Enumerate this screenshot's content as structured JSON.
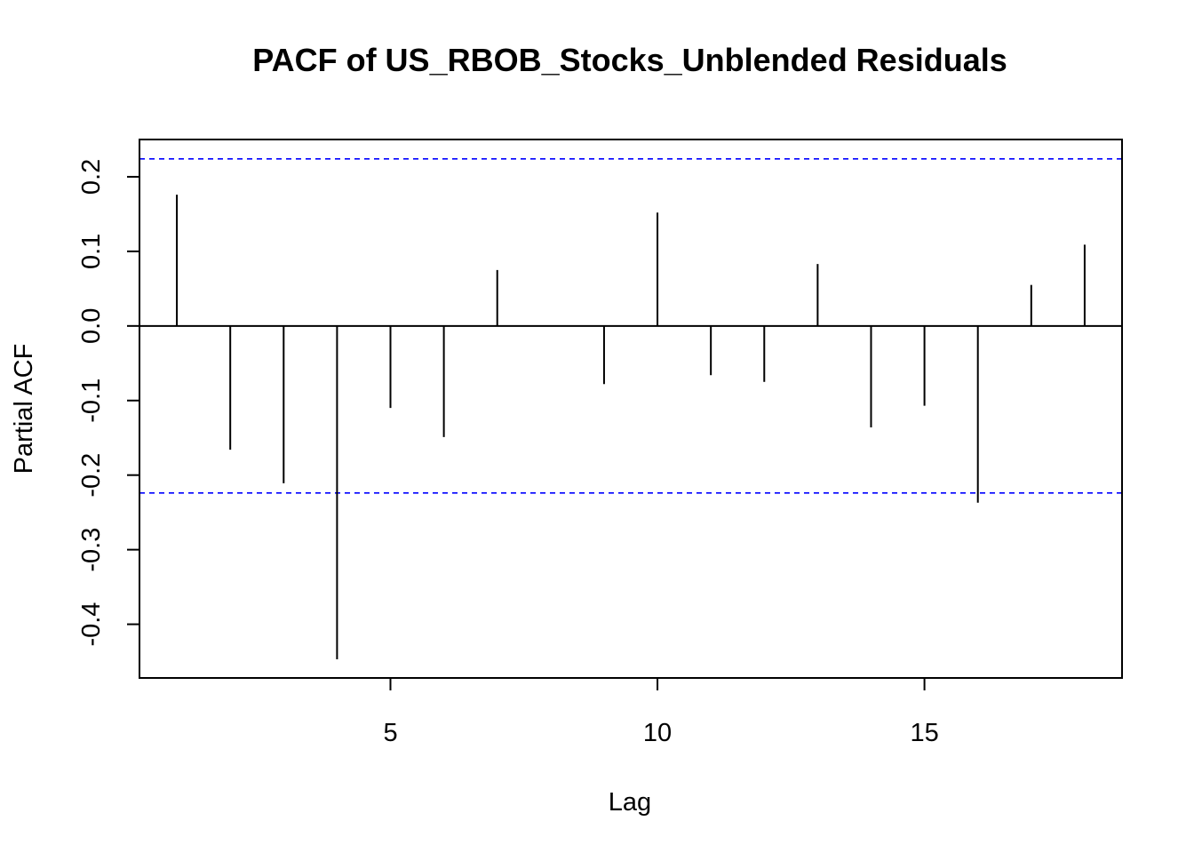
{
  "chart_data": {
    "type": "bar",
    "title": "PACF of US_RBOB_Stocks_Unblended Residuals",
    "xlabel": "Lag",
    "ylabel": "Partial ACF",
    "x": [
      1,
      2,
      3,
      4,
      5,
      6,
      7,
      8,
      9,
      10,
      11,
      12,
      13,
      14,
      15,
      16,
      17,
      18
    ],
    "values": [
      0.176,
      -0.166,
      -0.211,
      -0.447,
      -0.11,
      -0.149,
      0.075,
      0.0,
      -0.078,
      0.152,
      -0.066,
      -0.075,
      0.083,
      -0.136,
      -0.107,
      -0.237,
      0.055,
      0.109
    ],
    "confidence_bound": 0.224,
    "xlim": [
      0.3,
      18.7
    ],
    "ylim": [
      -0.472,
      0.25
    ],
    "x_ticks": [
      5,
      10,
      15
    ],
    "x_tick_labels": [
      "5",
      "10",
      "15"
    ],
    "y_ticks": [
      -0.4,
      -0.3,
      -0.2,
      -0.1,
      0.0,
      0.1,
      0.2
    ],
    "y_tick_labels": [
      "-0.4",
      "-0.3",
      "-0.2",
      "-0.1",
      "0.0",
      "0.1",
      "0.2"
    ],
    "colors": {
      "bars": "#000000",
      "bounds": "#0000ff",
      "zero_line": "#000000"
    },
    "grid": false,
    "legend": "none"
  }
}
